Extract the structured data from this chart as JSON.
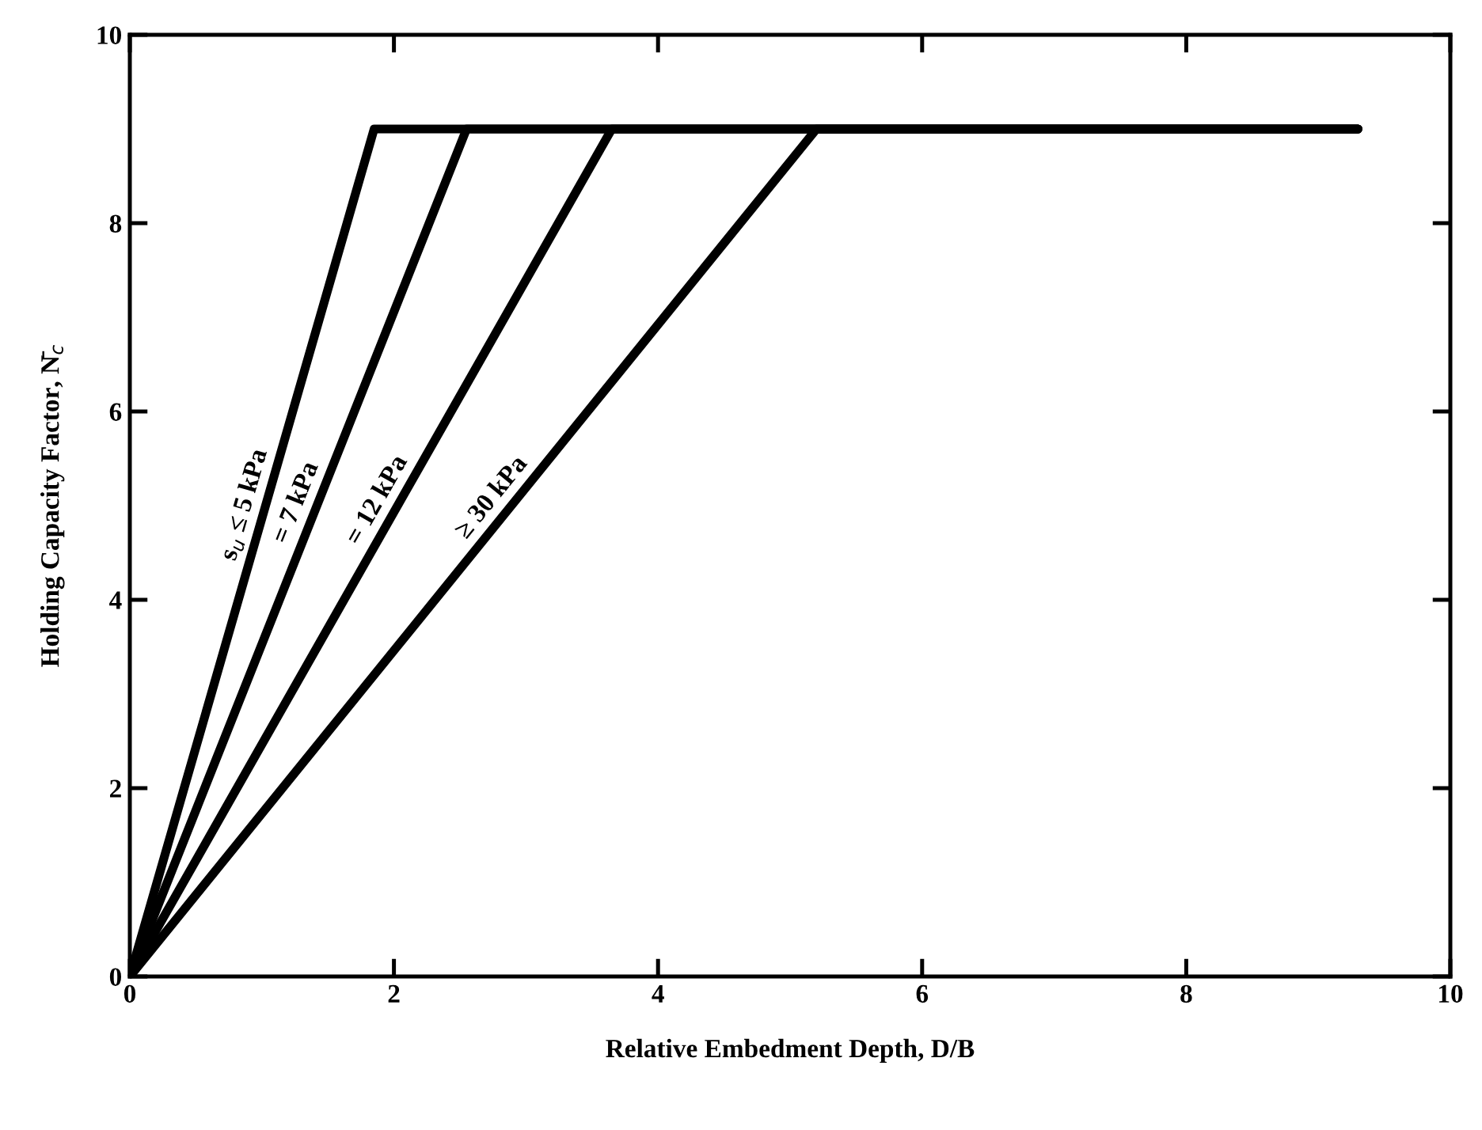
{
  "chart_data": {
    "type": "line",
    "xlabel": "Relative Embedment Depth, D/B",
    "ylabel": "Holding Capacity Factor, N̄$_{c}$",
    "series": [
      {
        "name": "s$_{u}$ ≤ 5 kPa",
        "color": "#000000",
        "x": [
          0,
          1.85,
          9.3
        ],
        "values": [
          0,
          9,
          9
        ]
      },
      {
        "name": "= 7 kPa",
        "color": "#000000",
        "x": [
          0,
          2.55,
          9.3
        ],
        "values": [
          0,
          9,
          9
        ]
      },
      {
        "name": "= 12 kPa",
        "color": "#000000",
        "x": [
          0,
          3.65,
          9.3
        ],
        "values": [
          0,
          9,
          9
        ]
      },
      {
        "name": "≥ 30 kPa",
        "color": "#000000",
        "x": [
          0,
          5.2,
          9.3
        ],
        "values": [
          0,
          9,
          9
        ]
      }
    ],
    "xlim": [
      0,
      10
    ],
    "ylim": [
      0,
      10
    ],
    "xticks": [
      0,
      2,
      4,
      6,
      8,
      10
    ],
    "yticks": [
      0,
      2,
      4,
      6,
      8,
      10
    ],
    "grid": false,
    "marker": "none",
    "line_style": "solid"
  }
}
